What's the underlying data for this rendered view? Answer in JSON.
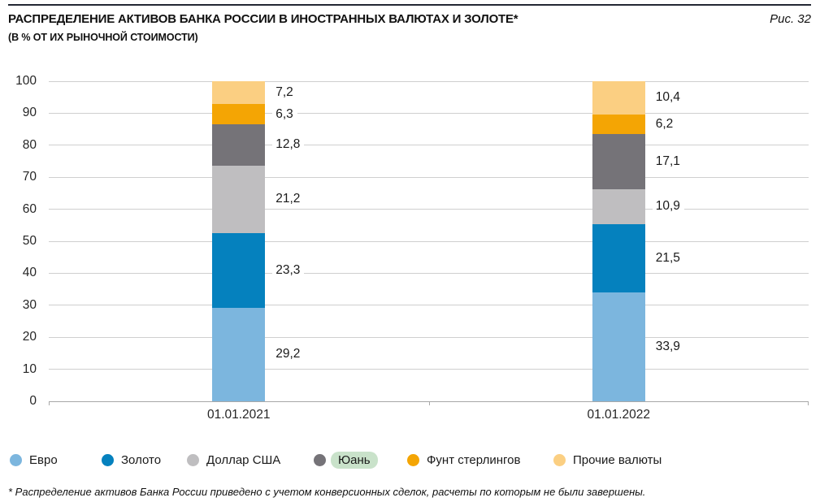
{
  "header": {
    "title": "РАСПРЕДЕЛЕНИЕ АКТИВОВ БАНКА РОССИИ В ИНОСТРАННЫХ ВАЛЮТАХ И ЗОЛОТЕ*",
    "subtitle": "(В % ОТ ИХ РЫНОЧНОЙ СТОИМОСТИ)",
    "figure_label": "Рис. 32"
  },
  "chart_data": {
    "type": "bar",
    "subtype": "stacked-vertical",
    "categories": [
      "01.01.2021",
      "01.01.2022"
    ],
    "series": [
      {
        "name": "Евро",
        "color": "#7cb6de",
        "values": [
          29.2,
          33.9
        ]
      },
      {
        "name": "Золото",
        "color": "#0581be",
        "values": [
          23.3,
          21.5
        ]
      },
      {
        "name": "Доллар США",
        "color": "#bfbec0",
        "values": [
          21.2,
          10.9
        ]
      },
      {
        "name": "Юань",
        "color": "#757378",
        "values": [
          12.8,
          17.1
        ],
        "highlighted": true
      },
      {
        "name": "Фунт стерлингов",
        "color": "#f4a504",
        "values": [
          6.3,
          6.2
        ]
      },
      {
        "name": "Прочие валюты",
        "color": "#fbcf82",
        "values": [
          7.2,
          10.4
        ]
      }
    ],
    "ylim": [
      0,
      100
    ],
    "ytick_step": 10,
    "grid": "horizontal",
    "legend_position": "bottom",
    "value_label_decimal_separator": ","
  },
  "footnote": "*  Распределение активов Банка России приведено с учетом конверсионных сделок, расчеты по которым не были завершены."
}
